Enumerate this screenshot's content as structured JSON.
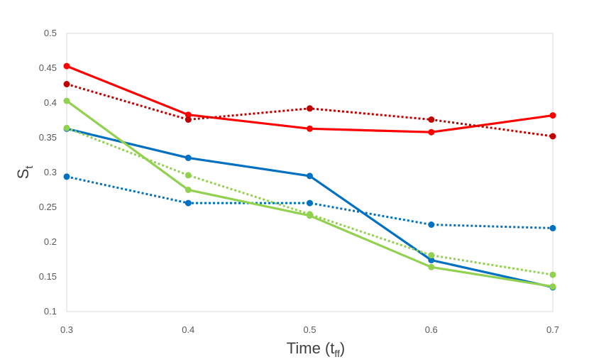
{
  "chart_data": {
    "type": "line",
    "title": "",
    "xlabel": {
      "main": "Time (t",
      "sub": "ff",
      "close": ")"
    },
    "ylabel": {
      "main": "S",
      "sub": "t"
    },
    "xlim": [
      0.3,
      0.7
    ],
    "ylim": [
      0.1,
      0.5
    ],
    "x_ticks": [
      "0.3",
      "0.4",
      "0.5",
      "0.6",
      "0.7"
    ],
    "y_ticks": [
      "0.1",
      "0.15",
      "0.2",
      "0.25",
      "0.3",
      "0.35",
      "0.4",
      "0.45",
      "0.5"
    ],
    "grid": false,
    "legend": "none",
    "x": [
      0.3,
      0.4,
      0.5,
      0.6,
      0.7
    ],
    "series": [
      {
        "name": "red-solid",
        "color": "#ff0000",
        "style": "solid",
        "marker_color": "#ff0000",
        "values": [
          0.453,
          0.383,
          0.363,
          0.358,
          0.382
        ]
      },
      {
        "name": "darkred-dotted",
        "color": "#c00000",
        "style": "dotted",
        "marker_color": "#c00000",
        "values": [
          0.427,
          0.376,
          0.392,
          0.376,
          0.352
        ]
      },
      {
        "name": "blue-solid",
        "color": "#0070c0",
        "style": "solid",
        "marker_color": "#0070c0",
        "values": [
          0.363,
          0.321,
          0.295,
          0.174,
          0.135
        ]
      },
      {
        "name": "blue-dotted",
        "color": "#0070c0",
        "style": "dotted",
        "marker_color": "#0070c0",
        "values": [
          0.294,
          0.256,
          0.256,
          0.225,
          0.22
        ]
      },
      {
        "name": "green-solid",
        "color": "#92d050",
        "style": "solid",
        "marker_color": "#92d050",
        "values": [
          0.403,
          0.275,
          0.238,
          0.164,
          0.136
        ]
      },
      {
        "name": "green-dotted",
        "color": "#92d050",
        "style": "dotted",
        "marker_color": "#92d050",
        "values": [
          0.364,
          0.296,
          0.24,
          0.181,
          0.153
        ]
      }
    ]
  }
}
